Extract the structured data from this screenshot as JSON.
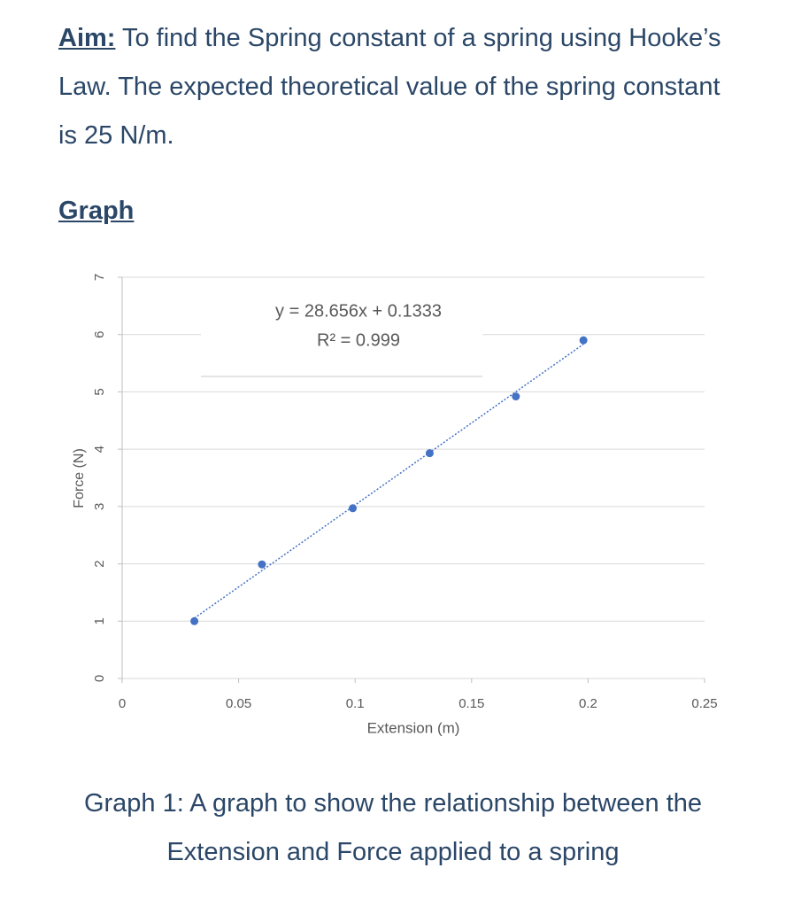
{
  "aim": {
    "label": "Aim:",
    "text": " To find the Spring constant of a spring using Hooke’s Law. The expected theoretical value of the spring constant is 25 N/m."
  },
  "heading": "Graph",
  "chart_data": {
    "type": "scatter",
    "xlabel": "Extension (m)",
    "ylabel": "Force (N)",
    "series": [
      {
        "name": "Force",
        "color": "#4472c4",
        "x": [
          0.031,
          0.06,
          0.099,
          0.132,
          0.169,
          0.198
        ],
        "values": [
          1.0,
          1.99,
          2.97,
          3.93,
          4.92,
          5.9
        ]
      }
    ],
    "xlim": [
      0,
      0.25
    ],
    "xticks": [
      0,
      0.05,
      0.1,
      0.15,
      0.2,
      0.25
    ],
    "ylim": [
      0,
      7
    ],
    "yticks": [
      0,
      1,
      2,
      3,
      4,
      5,
      6,
      7
    ],
    "grid": true,
    "trendline": true,
    "annotations": [
      "y = 28.656x + 0.1333",
      "R² = 0.999"
    ]
  },
  "caption": "Graph 1: A graph to show the relationship between the Extension and Force applied to a spring"
}
